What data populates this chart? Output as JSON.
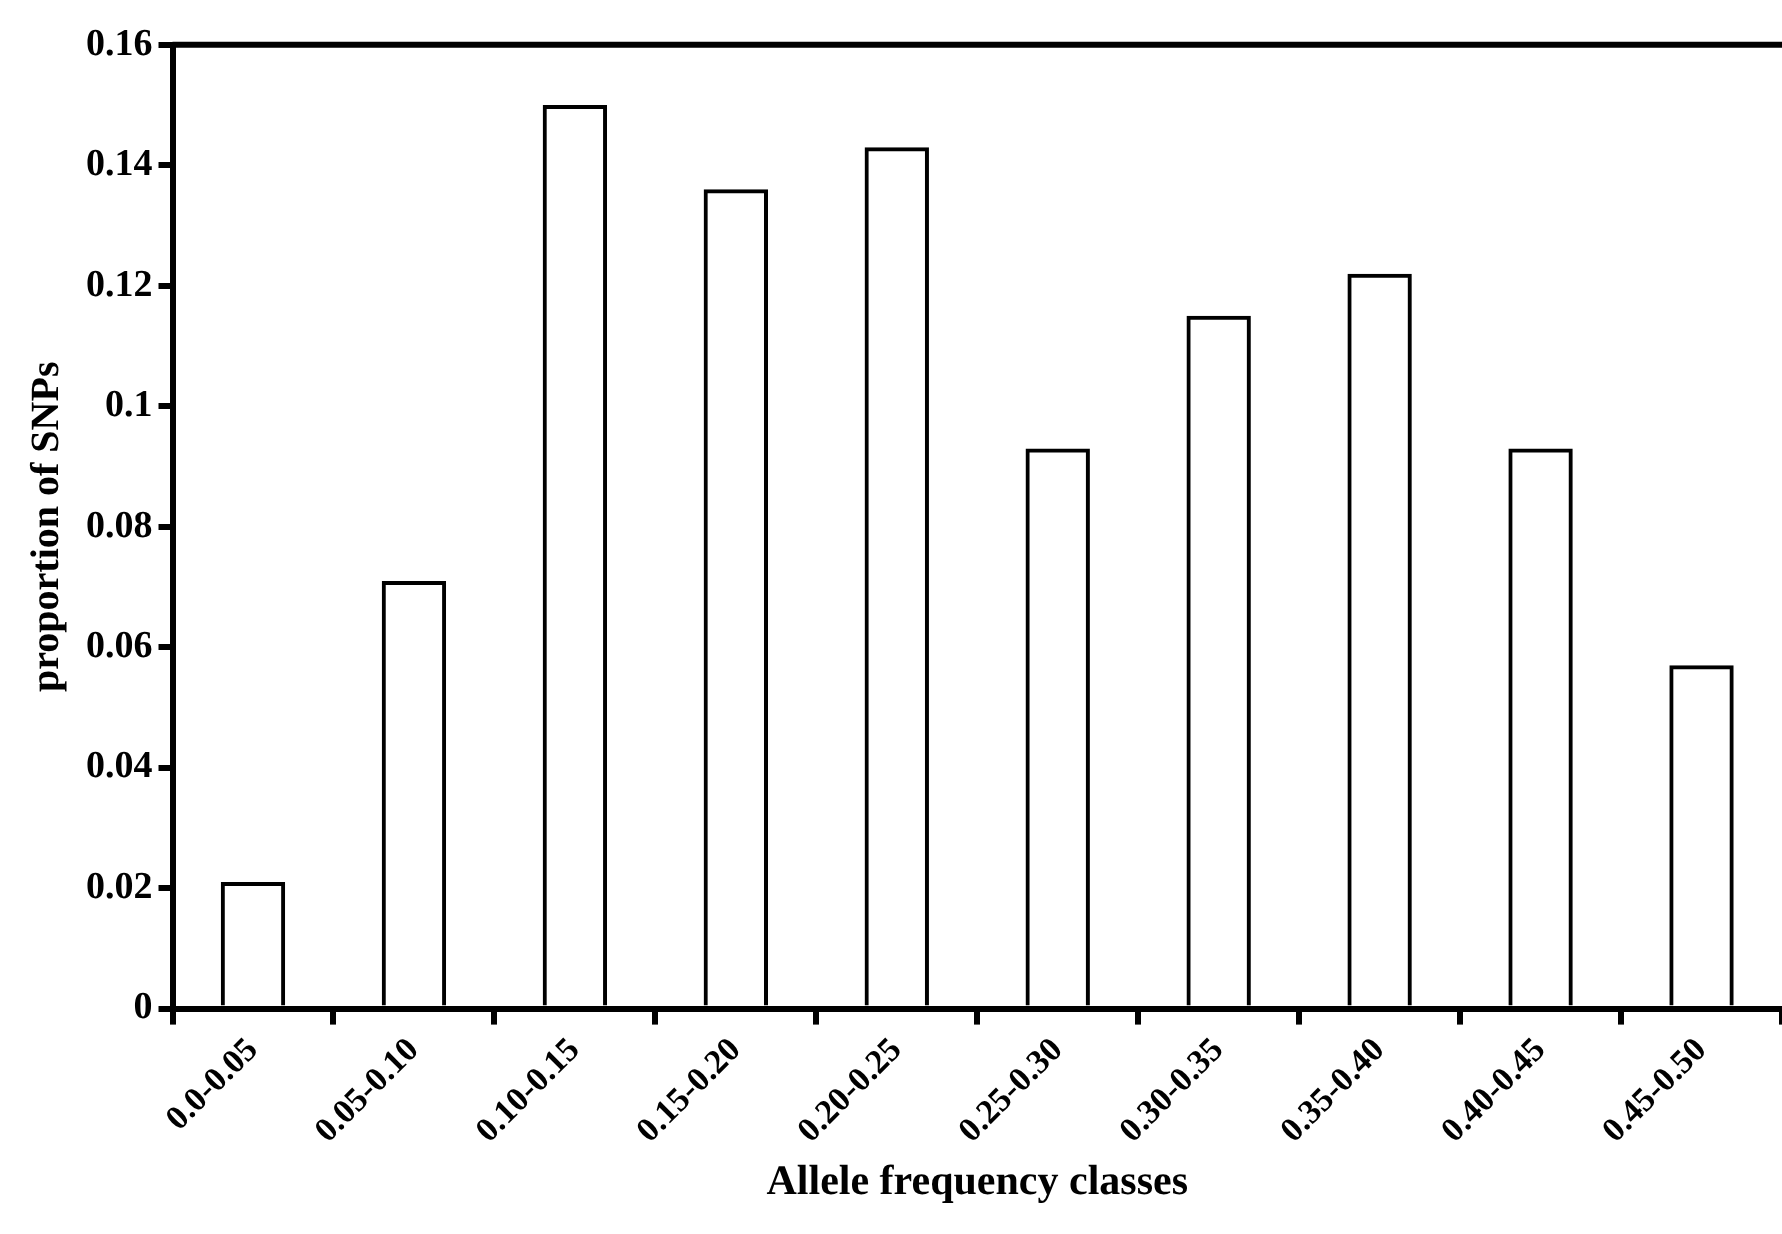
{
  "chart_data": {
    "type": "bar",
    "xlabel": "Allele frequency classes",
    "ylabel": "proportion of SNPs",
    "categories": [
      "0.0-0.05",
      "0.05-0.10",
      "0.10-0.15",
      "0.15-0.20",
      "0.20-0.25",
      "0.25-0.30",
      "0.30-0.35",
      "0.35-0.40",
      "0.40-0.45",
      "0.45-0.50"
    ],
    "values": [
      0.021,
      0.071,
      0.15,
      0.136,
      0.143,
      0.093,
      0.115,
      0.122,
      0.093,
      0.057
    ],
    "color": "#000000",
    "ylim": [
      0,
      0.16
    ],
    "yticks": [
      0,
      0.02,
      0.04,
      0.06,
      0.08,
      0.1,
      0.12,
      0.14,
      0.16
    ],
    "grid": false,
    "legend": false
  }
}
